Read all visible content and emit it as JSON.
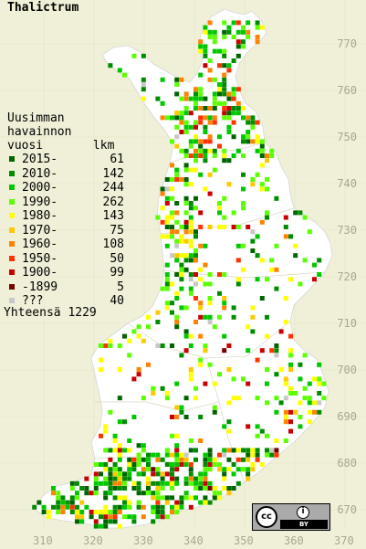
{
  "map": {
    "title": "Thalictrum",
    "legend_heading": "Uusimman\nhavainnon\nvuosi       lkm",
    "legend": [
      {
        "label": "2015-",
        "count": "61",
        "color": "#006400"
      },
      {
        "label": "2010-",
        "count": "142",
        "color": "#008c00"
      },
      {
        "label": "2000-",
        "count": "244",
        "color": "#00c800"
      },
      {
        "label": "1990-",
        "count": "262",
        "color": "#5aff00"
      },
      {
        "label": "1980-",
        "count": "143",
        "color": "#ffff00"
      },
      {
        "label": "1970-",
        "count": "75",
        "color": "#ffc800"
      },
      {
        "label": "1960-",
        "count": "108",
        "color": "#ff8200"
      },
      {
        "label": "1950-",
        "count": "50",
        "color": "#ff3200"
      },
      {
        "label": "1900-",
        "count": "99",
        "color": "#c80000"
      },
      {
        "label": "-1899",
        "count": "5",
        "color": "#780000"
      },
      {
        "label": "???",
        "count": "40",
        "color": "#c8c8c8"
      }
    ],
    "total": "Yhteensä 1229",
    "y_ticks": [
      "770",
      "760",
      "750",
      "740",
      "730",
      "720",
      "710",
      "700",
      "690",
      "680",
      "670"
    ],
    "x_ticks": [
      "310",
      "320",
      "330",
      "340",
      "350",
      "360",
      "370"
    ],
    "license": {
      "cc": "cc",
      "by": "BY",
      "icon": "cc-by-license-icon"
    },
    "land_color": "#ffffff",
    "background_color": "#f0f0d8",
    "grid_color": "#e3e3c8"
  }
}
